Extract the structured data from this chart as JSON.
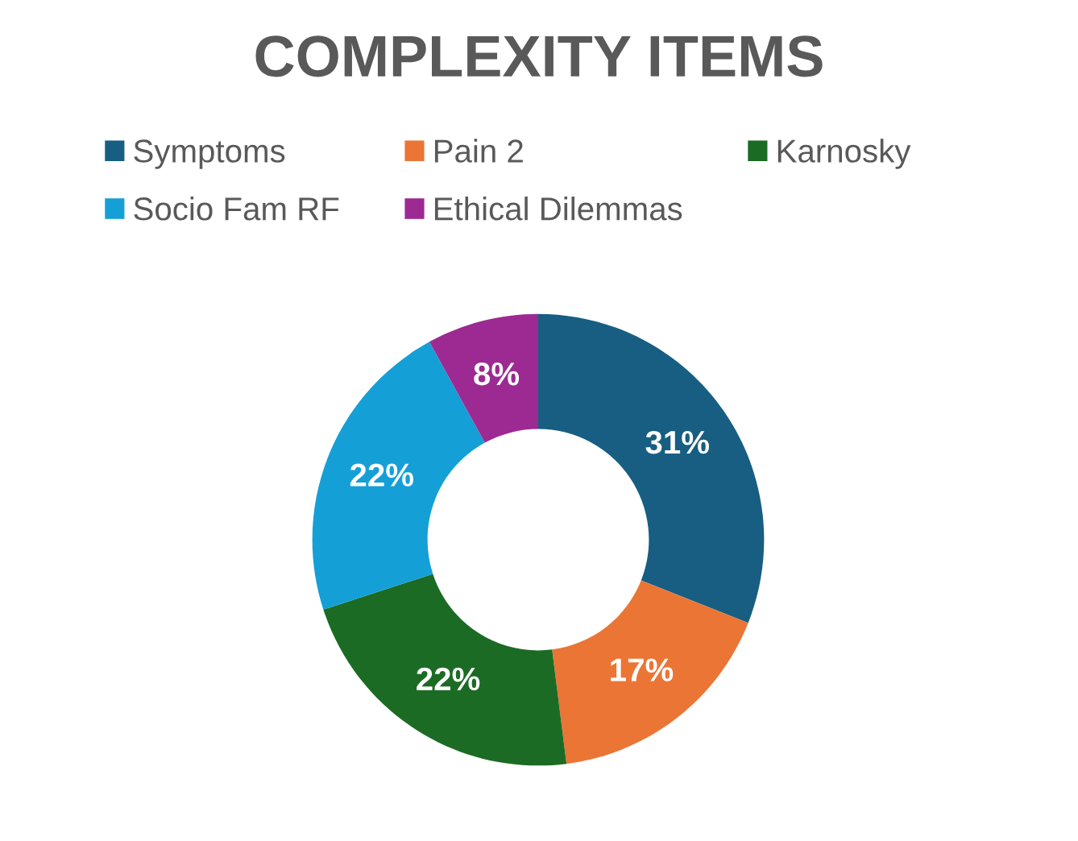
{
  "chart_data": {
    "type": "donut",
    "title": "COMPLEXITY ITEMS",
    "categories": [
      "Symptoms",
      "Pain 2",
      "Karnosky",
      "Socio Fam RF",
      "Ethical Dilemmas"
    ],
    "values": [
      31,
      17,
      22,
      22,
      8
    ],
    "colors": [
      "#175e82",
      "#eb7535",
      "#1c6b24",
      "#14a0d6",
      "#9c2a92"
    ],
    "value_labels": [
      "31%",
      "17%",
      "22%",
      "22%",
      "8%"
    ],
    "legend": "top"
  }
}
